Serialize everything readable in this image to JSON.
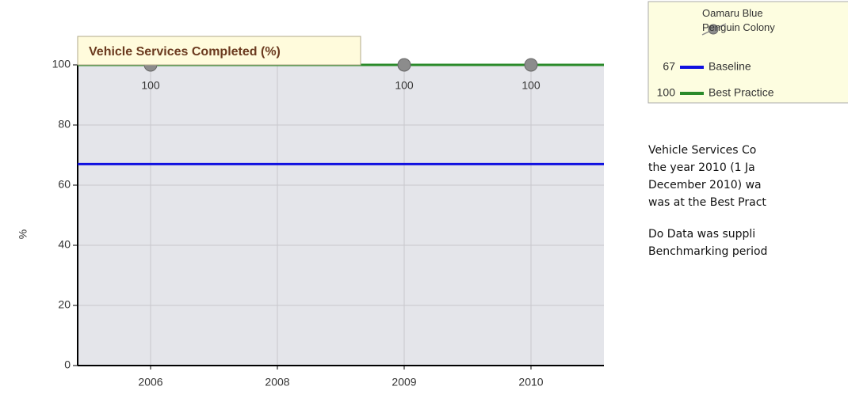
{
  "chart_data": {
    "type": "line",
    "title": "Vehicle Services Completed (%)",
    "y_label": "%",
    "categories": [
      "2006",
      "2008",
      "2009",
      "2010"
    ],
    "series": [
      {
        "name": "Oamaru Blue Penguin Colony",
        "color": "#8c8c8c",
        "values": [
          100,
          null,
          100,
          100
        ]
      }
    ],
    "reference_lines": [
      {
        "name": "Baseline",
        "value": 67,
        "color": "#1010e0"
      },
      {
        "name": "Best Practice",
        "value": 100,
        "color": "#2a8a2a"
      }
    ],
    "ylim": [
      0,
      100
    ],
    "yticks": [
      0,
      20,
      40,
      60,
      80,
      100
    ],
    "grid": true
  },
  "notes": [
    [
      "Vehicle Services Co",
      "the year 2010 (1 Ja",
      "December 2010) wa",
      "was at the Best Pract"
    ],
    [
      "Do Data was suppli",
      "Benchmarking period"
    ]
  ]
}
